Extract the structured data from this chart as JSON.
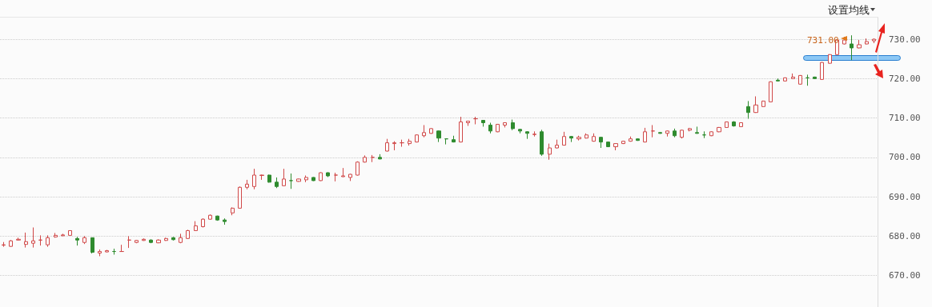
{
  "chart_data": {
    "type": "candlestick",
    "categories": [
      null,
      null,
      null,
      null,
      null,
      null,
      null,
      null,
      null,
      null,
      null,
      null,
      null,
      null,
      null,
      null,
      null,
      null,
      null,
      null,
      null,
      null,
      null,
      null,
      null,
      null,
      null,
      null,
      null,
      null,
      null,
      null,
      null,
      null,
      null,
      null,
      null,
      null,
      null,
      null,
      null,
      null,
      null,
      null,
      null,
      null,
      null,
      null,
      null,
      null,
      null,
      null,
      null,
      null,
      null,
      null,
      null,
      null,
      null,
      null,
      null,
      null,
      null,
      null,
      null,
      null,
      null,
      null,
      null,
      null,
      null,
      null,
      null,
      null,
      null,
      null,
      null,
      null,
      null,
      null,
      null,
      null,
      null,
      null,
      null,
      null,
      null,
      null,
      null,
      null,
      null,
      null,
      null,
      null,
      null,
      null,
      null,
      null,
      null,
      null,
      null,
      null,
      null,
      null,
      null,
      null,
      null,
      null,
      null,
      null,
      null,
      null,
      null,
      null,
      null,
      null,
      null,
      null,
      null
    ],
    "ohlc": [
      [
        677.7,
        678.5,
        677.3,
        677.8
      ],
      [
        677.4,
        679.0,
        677.3,
        678.8
      ],
      [
        679.0,
        679.6,
        678.9,
        679.2
      ],
      [
        677.9,
        680.9,
        677.1,
        678.6
      ],
      [
        678.2,
        682.2,
        677.1,
        678.8
      ],
      [
        679.0,
        680.2,
        677.6,
        679.0
      ],
      [
        677.8,
        680.2,
        677.3,
        679.6
      ],
      [
        679.8,
        680.8,
        679.6,
        680.2
      ],
      [
        680.1,
        680.6,
        680.0,
        680.3
      ],
      [
        680.2,
        681.4,
        680.2,
        681.4
      ],
      [
        679.4,
        679.8,
        677.6,
        679.0
      ],
      [
        678.4,
        680.0,
        678.0,
        679.6
      ],
      [
        679.6,
        679.6,
        675.6,
        675.9
      ],
      [
        675.7,
        676.6,
        674.9,
        676.1
      ],
      [
        676.0,
        676.5,
        675.9,
        676.3
      ],
      [
        676.1,
        676.8,
        675.3,
        676.1
      ],
      [
        676.1,
        677.8,
        676.1,
        676.1
      ],
      [
        679.0,
        680.0,
        677.0,
        679.0
      ],
      [
        678.4,
        679.0,
        678.2,
        678.9
      ],
      [
        678.9,
        679.4,
        678.8,
        679.2
      ],
      [
        679.0,
        679.2,
        678.2,
        678.4
      ],
      [
        678.3,
        679.2,
        678.2,
        679.0
      ],
      [
        678.9,
        679.6,
        678.8,
        679.4
      ],
      [
        679.6,
        679.8,
        678.9,
        679.1
      ],
      [
        678.4,
        680.6,
        678.2,
        679.6
      ],
      [
        679.4,
        681.6,
        679.3,
        681.4
      ],
      [
        681.4,
        683.8,
        681.3,
        682.6
      ],
      [
        682.4,
        684.5,
        682.2,
        684.3
      ],
      [
        684.3,
        685.5,
        684.2,
        685.3
      ],
      [
        685.1,
        685.2,
        683.9,
        684.1
      ],
      [
        684.1,
        684.5,
        682.9,
        683.7
      ],
      [
        685.9,
        687.3,
        685.3,
        687.1
      ],
      [
        687.1,
        692.6,
        687.0,
        692.4
      ],
      [
        692.4,
        694.3,
        691.9,
        693.2
      ],
      [
        692.6,
        697.1,
        691.9,
        695.5
      ],
      [
        695.4,
        695.6,
        694.3,
        695.5
      ],
      [
        695.5,
        695.6,
        693.6,
        693.7
      ],
      [
        693.7,
        694.9,
        692.2,
        692.6
      ],
      [
        692.8,
        697.1,
        692.7,
        694.5
      ],
      [
        694.1,
        695.9,
        692.0,
        694.1
      ],
      [
        693.9,
        694.6,
        693.8,
        694.5
      ],
      [
        694.3,
        695.4,
        693.7,
        694.9
      ],
      [
        694.9,
        695.0,
        694.0,
        694.1
      ],
      [
        694.1,
        696.2,
        694.0,
        696.1
      ],
      [
        696.1,
        696.2,
        695.0,
        695.3
      ],
      [
        695.5,
        696.1,
        693.9,
        695.5
      ],
      [
        695.1,
        697.3,
        695.0,
        695.3
      ],
      [
        694.9,
        695.8,
        694.0,
        695.7
      ],
      [
        695.5,
        699.0,
        695.4,
        698.8
      ],
      [
        698.8,
        700.5,
        698.7,
        700.0
      ],
      [
        700.0,
        700.6,
        698.8,
        700.0
      ],
      [
        700.0,
        700.8,
        699.5,
        699.6
      ],
      [
        701.6,
        704.7,
        701.5,
        703.7
      ],
      [
        703.5,
        704.1,
        701.8,
        703.7
      ],
      [
        703.7,
        704.5,
        702.7,
        703.7
      ],
      [
        703.5,
        704.7,
        703.0,
        704.1
      ],
      [
        703.9,
        705.8,
        703.8,
        705.7
      ],
      [
        705.5,
        708.2,
        705.1,
        706.3
      ],
      [
        706.1,
        707.4,
        706.0,
        707.3
      ],
      [
        706.7,
        706.8,
        703.9,
        704.9
      ],
      [
        704.7,
        704.7,
        703.3,
        704.7
      ],
      [
        704.5,
        705.5,
        703.8,
        703.9
      ],
      [
        703.9,
        710.3,
        703.8,
        709.0
      ],
      [
        708.8,
        709.3,
        708.0,
        709.2
      ],
      [
        709.8,
        710.3,
        708.4,
        709.8
      ],
      [
        709.4,
        709.5,
        707.8,
        708.8
      ],
      [
        708.2,
        708.8,
        706.1,
        706.7
      ],
      [
        706.5,
        708.5,
        706.4,
        708.4
      ],
      [
        708.2,
        708.9,
        707.6,
        708.8
      ],
      [
        708.8,
        709.6,
        706.9,
        707.3
      ],
      [
        707.1,
        707.2,
        706.1,
        706.7
      ],
      [
        706.5,
        706.6,
        704.7,
        706.1
      ],
      [
        705.8,
        706.6,
        705.3,
        705.9
      ],
      [
        706.5,
        707.0,
        700.4,
        700.8
      ],
      [
        700.8,
        703.5,
        699.4,
        702.4
      ],
      [
        702.4,
        704.5,
        702.3,
        703.1
      ],
      [
        703.1,
        706.5,
        703.0,
        705.3
      ],
      [
        705.3,
        705.4,
        703.9,
        704.9
      ],
      [
        704.7,
        705.5,
        704.3,
        705.1
      ],
      [
        704.9,
        706.1,
        704.8,
        705.7
      ],
      [
        704.1,
        706.1,
        704.0,
        705.3
      ],
      [
        705.1,
        705.2,
        702.4,
        703.9
      ],
      [
        703.9,
        704.0,
        702.6,
        702.7
      ],
      [
        702.7,
        703.6,
        701.8,
        703.5
      ],
      [
        703.5,
        704.2,
        703.4,
        704.1
      ],
      [
        704.1,
        705.3,
        704.0,
        704.7
      ],
      [
        704.7,
        704.8,
        704.2,
        704.3
      ],
      [
        703.9,
        707.5,
        703.8,
        706.5
      ],
      [
        706.7,
        708.2,
        705.1,
        706.7
      ],
      [
        706.3,
        706.4,
        706.0,
        706.1
      ],
      [
        706.1,
        706.8,
        705.3,
        706.7
      ],
      [
        706.7,
        707.3,
        705.1,
        705.5
      ],
      [
        705.1,
        707.0,
        704.8,
        706.9
      ],
      [
        706.9,
        707.5,
        706.6,
        707.3
      ],
      [
        706.3,
        707.8,
        706.0,
        706.1
      ],
      [
        705.7,
        706.6,
        704.9,
        705.7
      ],
      [
        705.5,
        706.6,
        705.4,
        706.5
      ],
      [
        706.5,
        707.7,
        706.4,
        707.6
      ],
      [
        707.6,
        709.1,
        707.5,
        709.0
      ],
      [
        709.0,
        709.2,
        707.8,
        708.0
      ],
      [
        707.8,
        708.9,
        707.7,
        708.8
      ],
      [
        712.9,
        714.3,
        709.8,
        711.4
      ],
      [
        711.4,
        715.5,
        711.3,
        713.3
      ],
      [
        712.9,
        714.4,
        712.8,
        714.3
      ],
      [
        714.1,
        719.3,
        714.0,
        719.2
      ],
      [
        719.6,
        720.0,
        719.3,
        719.4
      ],
      [
        719.4,
        720.3,
        719.3,
        720.2
      ],
      [
        720.0,
        721.3,
        719.9,
        720.4
      ],
      [
        718.6,
        720.9,
        718.5,
        720.8
      ],
      [
        720.2,
        721.0,
        718.2,
        720.2
      ],
      [
        720.4,
        720.5,
        719.9,
        720.0
      ],
      [
        719.8,
        724.2,
        719.7,
        724.1
      ],
      [
        723.9,
        726.2,
        723.8,
        726.1
      ],
      [
        726.1,
        729.9,
        726.0,
        729.8
      ],
      [
        728.8,
        730.6,
        728.7,
        729.8
      ],
      [
        728.8,
        731.0,
        724.7,
        727.8
      ],
      [
        727.8,
        729.8,
        727.7,
        728.6
      ],
      [
        728.8,
        730.2,
        728.7,
        729.4
      ],
      [
        729.6,
        730.2,
        729.0,
        730.0
      ]
    ],
    "ylim": [
      662,
      735.5
    ],
    "yticks": [
      {
        "value": 670,
        "label": "670.00"
      },
      {
        "value": 680,
        "label": "680.00"
      },
      {
        "value": 690,
        "label": "690.00"
      },
      {
        "value": 700,
        "label": "700.00"
      },
      {
        "value": 710,
        "label": "710.00"
      },
      {
        "value": 720,
        "label": "720.00"
      },
      {
        "value": 730,
        "label": "730.00"
      }
    ],
    "grid": "y",
    "annotations": [
      "设置均线",
      "731.00"
    ]
  }
}
